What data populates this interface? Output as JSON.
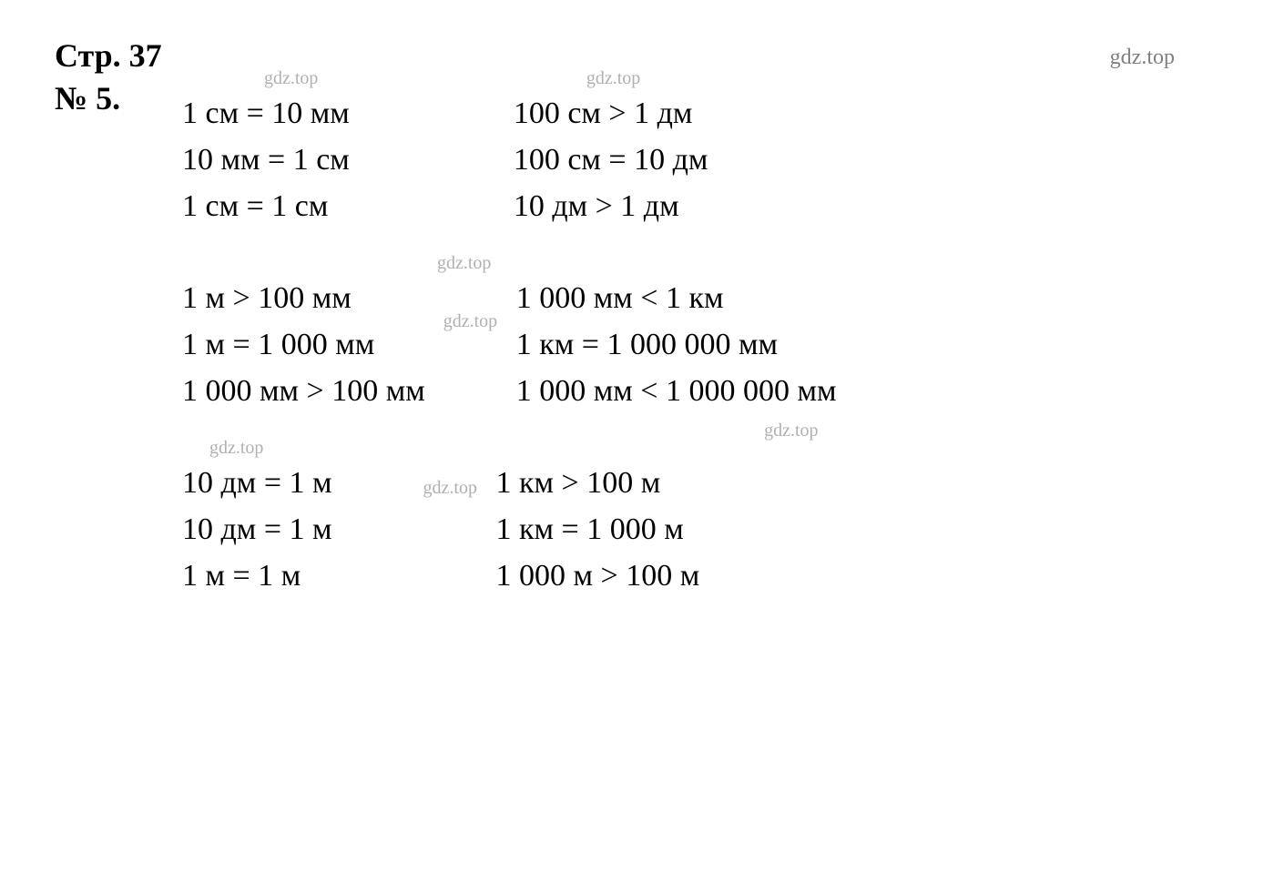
{
  "header": {
    "page_title": "Стр. 37",
    "problem_number": "№ 5.",
    "top_watermark": "gdz.top"
  },
  "watermark_text": "gdz.top",
  "blocks": {
    "group1": {
      "left": {
        "line1": "1 см = 10 мм",
        "line2": "10 мм = 1 см",
        "line3": "1 см = 1 см"
      },
      "right": {
        "line1": "100 см > 1 дм",
        "line2": "100 см = 10 дм",
        "line3": "10 дм > 1 дм"
      }
    },
    "group2": {
      "left": {
        "line1": "1 м > 100 мм",
        "line2": "1 м = 1 000 мм",
        "line3": "1 000 мм > 100 мм"
      },
      "right": {
        "line1": "1 000 мм < 1 км",
        "line2": "1 км = 1 000 000 мм",
        "line3": "1 000 мм < 1 000 000 мм"
      }
    },
    "group3": {
      "left": {
        "line1": "10 дм = 1 м",
        "line2": "10 дм = 1 м",
        "line3": "1 м = 1 м"
      },
      "right": {
        "line1": "1 км > 100 м",
        "line2": "1 км = 1 000 м",
        "line3": "1 000 м > 100 м"
      }
    }
  },
  "styling": {
    "background_color": "#ffffff",
    "text_color": "#000000",
    "watermark_color": "#b0b0b0",
    "top_watermark_color": "#808080",
    "title_fontsize": 36,
    "math_fontsize": 34,
    "watermark_fontsize": 20,
    "font_family": "Times New Roman"
  }
}
